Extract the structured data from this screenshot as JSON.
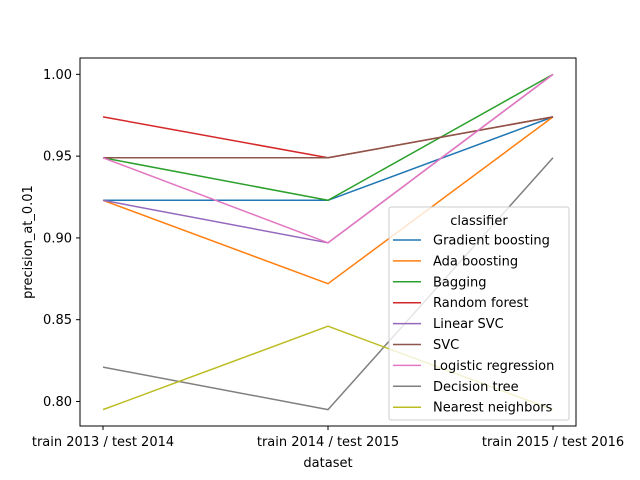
{
  "chart_data": {
    "type": "line",
    "xlabel": "dataset",
    "ylabel": "precision_at_0.01",
    "categories": [
      "train 2013 / test 2014",
      "train 2014 / test 2015",
      "train 2015 / test 2016"
    ],
    "ylim": [
      0.785,
      1.01
    ],
    "yticks": [
      "0.80",
      "0.85",
      "0.90",
      "0.95",
      "1.00"
    ],
    "grid": false,
    "legend": {
      "title": "classifier",
      "placement": "right"
    },
    "series": [
      {
        "name": "Gradient boosting",
        "color": "#1f77b4",
        "values": [
          0.923,
          0.923,
          0.974
        ]
      },
      {
        "name": "Ada boosting",
        "color": "#ff7f0e",
        "values": [
          0.923,
          0.872,
          0.974
        ]
      },
      {
        "name": "Bagging",
        "color": "#2ca02c",
        "values": [
          0.949,
          0.923,
          1.0
        ]
      },
      {
        "name": "Random forest",
        "color": "#d62728",
        "values": [
          0.974,
          0.949,
          0.974
        ]
      },
      {
        "name": "Linear SVC",
        "color": "#9467bd",
        "values": [
          0.923,
          0.897,
          1.0
        ]
      },
      {
        "name": "SVC",
        "color": "#8c564b",
        "values": [
          0.949,
          0.949,
          0.974
        ]
      },
      {
        "name": "Logistic regression",
        "color": "#e377c2",
        "values": [
          0.949,
          0.897,
          1.0
        ]
      },
      {
        "name": "Decision tree",
        "color": "#7f7f7f",
        "values": [
          0.821,
          0.795,
          0.949
        ]
      },
      {
        "name": "Nearest neighbors",
        "color": "#bcbd22",
        "values": [
          0.795,
          0.846,
          0.795
        ]
      }
    ]
  }
}
